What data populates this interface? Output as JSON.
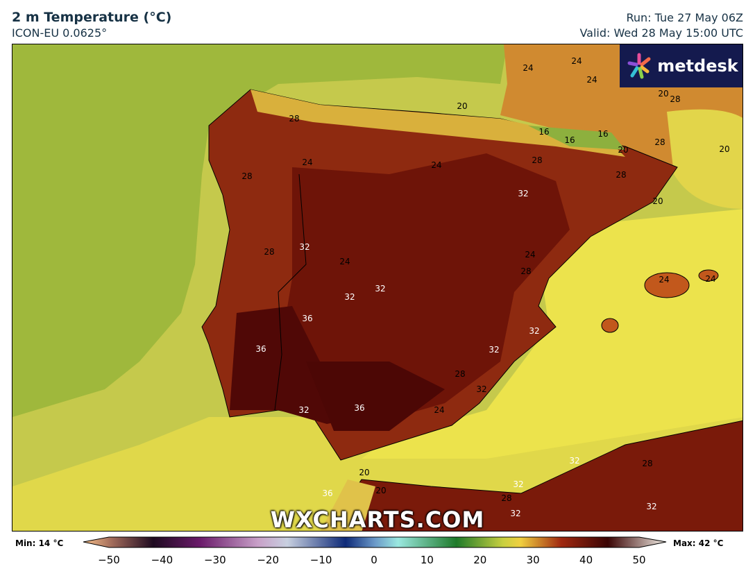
{
  "header": {
    "title": "2 m Temperature (°C)",
    "model": "ICON-EU 0.0625°",
    "run": "Run: Tue 27 May 06Z",
    "valid": "Valid: Wed 28 May 15:00 UTC"
  },
  "logo": {
    "text": "metdesk"
  },
  "watermark": "WXCHARTS.COM",
  "contour_labels": [
    "24",
    "24",
    "24",
    "20",
    "28",
    "20",
    "16",
    "16",
    "16",
    "20",
    "28",
    "28",
    "20",
    "24",
    "24",
    "28",
    "28",
    "32",
    "20",
    "32",
    "24",
    "28",
    "28",
    "24",
    "24",
    "32",
    "32",
    "36",
    "36",
    "32",
    "28",
    "32",
    "28",
    "24",
    "32",
    "36",
    "20",
    "20",
    "24",
    "32",
    "28",
    "32",
    "28",
    "36",
    "32",
    "32",
    "32"
  ],
  "colorbar": {
    "min_label": "Min: 14 °C",
    "max_label": "Max: 42 °C",
    "ticks": [
      "−50",
      "−40",
      "−30",
      "−20",
      "−10",
      "0",
      "10",
      "20",
      "30",
      "40",
      "50"
    ],
    "range": [
      -50,
      50
    ]
  },
  "colors": {
    "atlantic": "#9fb83c",
    "sea": "#c5c94c",
    "med": "#ece34c",
    "land_hot": "#6e1408",
    "land_core": "#500806",
    "header_text": "#173245",
    "logo_bg": "#141a4e"
  }
}
